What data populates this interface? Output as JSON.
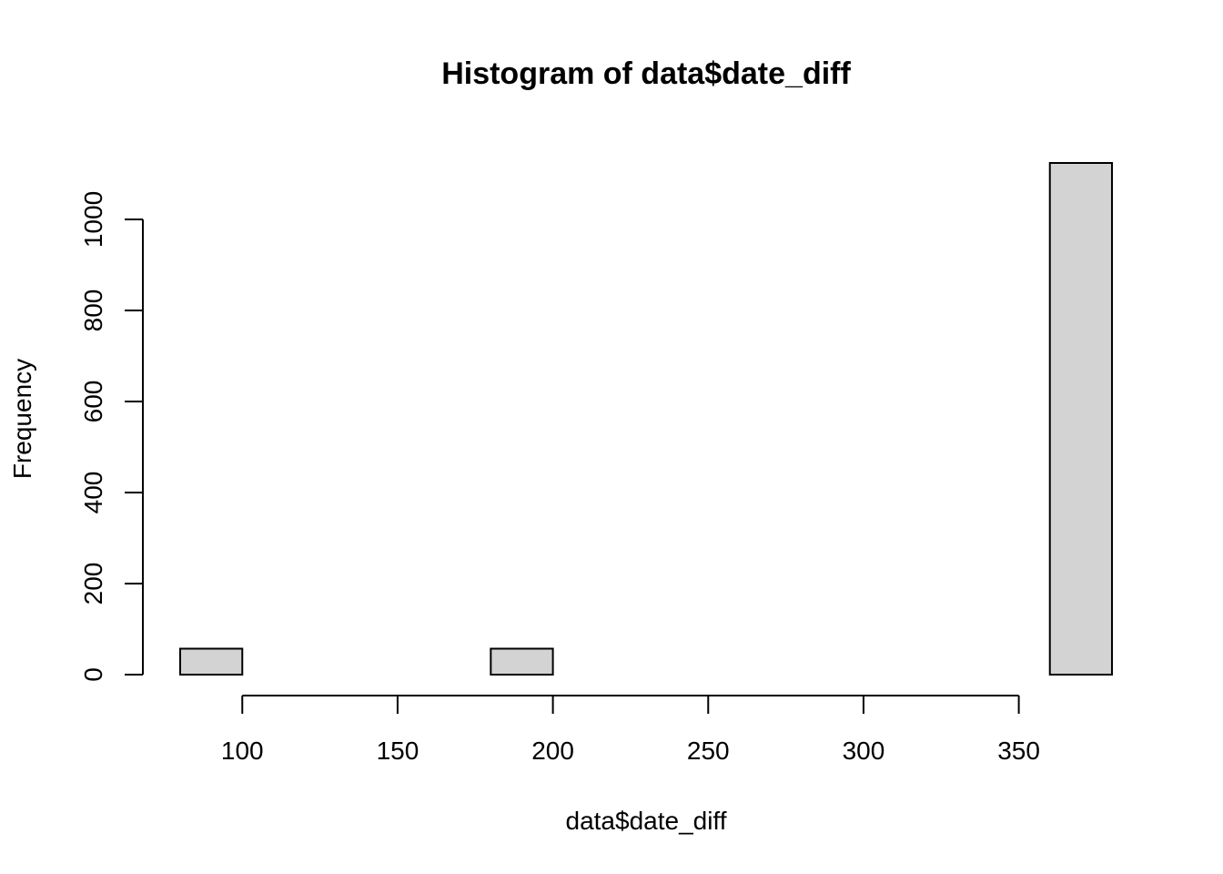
{
  "chart_data": {
    "type": "bar",
    "title": "Histogram of data$date_diff",
    "xlabel": "data$date_diff",
    "ylabel": "Frequency",
    "bins": [
      {
        "x0": 80,
        "x1": 100,
        "count": 57
      },
      {
        "x0": 100,
        "x1": 120,
        "count": 0
      },
      {
        "x0": 120,
        "x1": 140,
        "count": 0
      },
      {
        "x0": 140,
        "x1": 160,
        "count": 0
      },
      {
        "x0": 160,
        "x1": 180,
        "count": 0
      },
      {
        "x0": 180,
        "x1": 200,
        "count": 57
      },
      {
        "x0": 200,
        "x1": 220,
        "count": 0
      },
      {
        "x0": 220,
        "x1": 240,
        "count": 0
      },
      {
        "x0": 240,
        "x1": 260,
        "count": 0
      },
      {
        "x0": 260,
        "x1": 280,
        "count": 0
      },
      {
        "x0": 280,
        "x1": 300,
        "count": 0
      },
      {
        "x0": 300,
        "x1": 320,
        "count": 0
      },
      {
        "x0": 320,
        "x1": 340,
        "count": 0
      },
      {
        "x0": 340,
        "x1": 360,
        "count": 0
      },
      {
        "x0": 360,
        "x1": 380,
        "count": 1124
      }
    ],
    "xticks": [
      100,
      150,
      200,
      250,
      300,
      350
    ],
    "yticks": [
      0,
      200,
      400,
      600,
      800,
      1000
    ],
    "xlim": [
      80,
      380
    ],
    "ylim": [
      0,
      1124
    ],
    "bar_color": "#d3d3d3",
    "grid": false
  }
}
